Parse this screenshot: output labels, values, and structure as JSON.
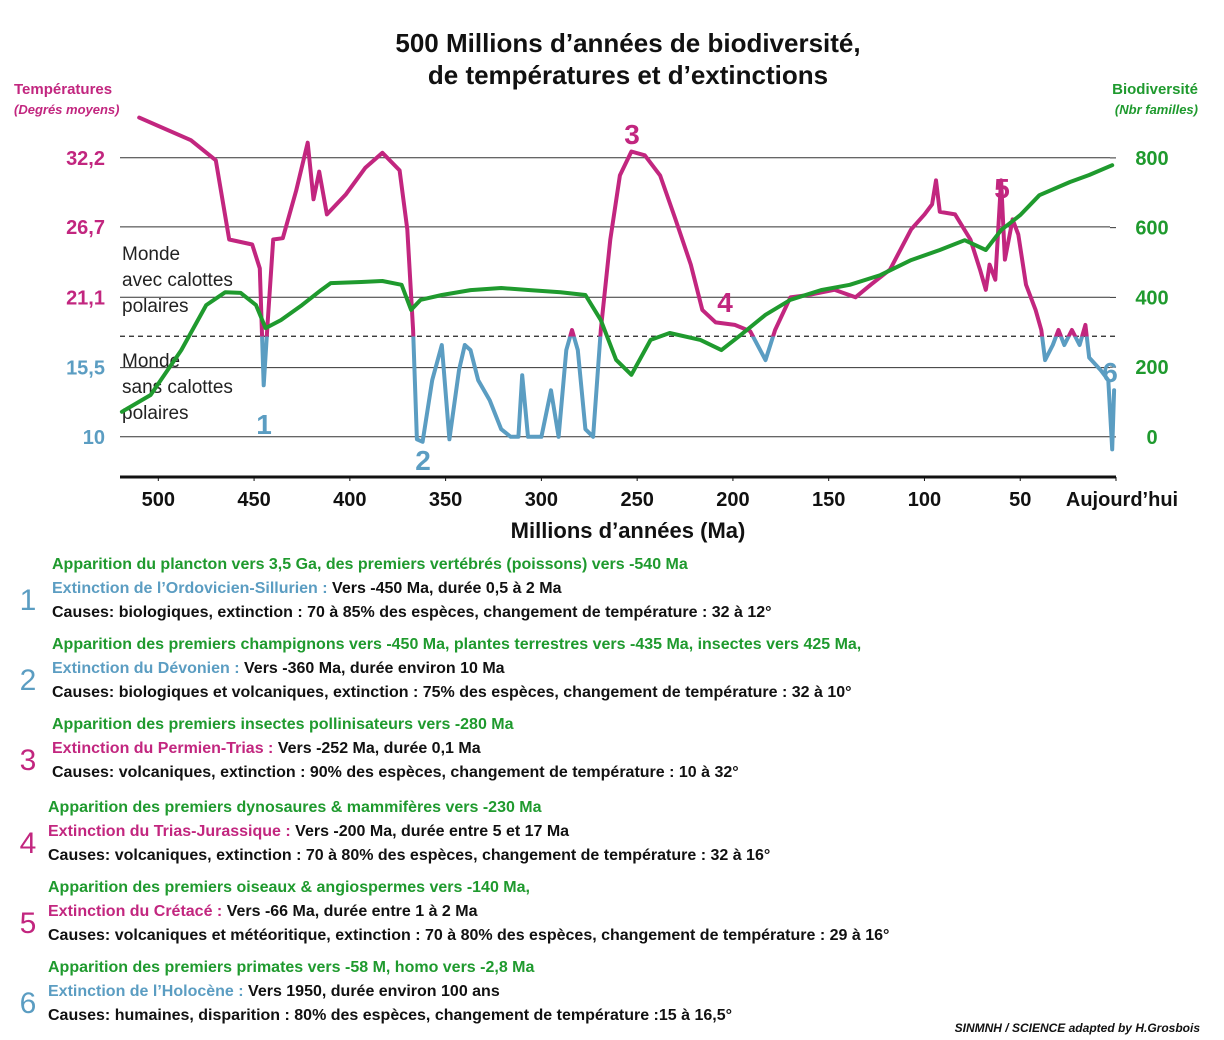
{
  "chart_data": {
    "type": "line",
    "title": [
      "500 Millions d’années de biodiversité,",
      "de températures et d’extinctions"
    ],
    "x_label": "Millions d’années (Ma)",
    "xlim": [
      520,
      0
    ],
    "xticks": [
      500,
      450,
      400,
      350,
      300,
      250,
      200,
      150,
      100,
      50,
      {
        "value": 0,
        "label": "Aujourd’hui"
      }
    ],
    "ylim": [
      6.8,
      36.8
    ],
    "yticks": [
      {
        "value": 32.2,
        "label": "32,2"
      },
      {
        "value": 26.7,
        "label": "26,7"
      },
      {
        "value": 21.1,
        "label": "21,1"
      },
      {
        "value": 15.5,
        "label": "15,5"
      },
      10
    ],
    "y2lim": [
      -115,
      966
    ],
    "y2ticks": [
      800,
      600,
      400,
      200,
      0
    ],
    "grid": true,
    "ice_cap_threshold": 18,
    "series": [
      {
        "name": "Températures",
        "unit": "(Degrés moyens)",
        "color": "#c2267f",
        "cold_color": "#5b9dc2",
        "x": [
          510,
          483,
          470,
          463,
          451,
          447,
          445,
          443,
          440,
          435,
          428,
          422,
          419,
          416,
          412,
          402,
          392,
          383,
          374,
          370,
          367,
          365,
          362,
          357,
          352,
          348,
          343,
          340,
          337,
          333,
          327,
          321,
          316,
          312,
          310,
          307,
          300,
          295,
          291,
          287,
          284,
          281,
          277,
          273,
          269,
          264,
          259,
          253,
          246,
          238,
          230,
          222,
          216,
          209,
          199,
          191,
          183,
          178,
          170,
          160,
          147,
          136,
          128,
          118,
          107,
          100,
          96,
          94,
          92,
          84,
          76,
          71,
          68,
          66,
          63,
          60,
          58,
          54,
          51,
          47,
          42,
          39,
          37,
          33,
          30,
          27,
          23,
          19,
          16,
          14,
          8,
          4,
          2,
          1
        ],
        "values": [
          35.4,
          33.6,
          32.0,
          25.7,
          25.3,
          23.4,
          14.1,
          18.9,
          25.7,
          25.8,
          29.6,
          33.4,
          28.9,
          31.1,
          27.7,
          29.3,
          31.4,
          32.6,
          31.2,
          26.5,
          18.5,
          9.8,
          9.6,
          14.5,
          17.3,
          9.8,
          15.3,
          17.3,
          16.9,
          14.5,
          12.9,
          10.6,
          10.0,
          10.0,
          14.9,
          10.0,
          10.0,
          13.7,
          10.0,
          16.9,
          18.5,
          16.9,
          10.6,
          10.0,
          18.5,
          25.7,
          30.8,
          32.7,
          32.4,
          30.8,
          27.3,
          23.7,
          20.1,
          19.1,
          18.9,
          18.4,
          16.1,
          18.5,
          21.1,
          21.3,
          21.7,
          21.1,
          22.1,
          23.3,
          26.5,
          27.7,
          28.5,
          30.4,
          27.9,
          27.7,
          25.7,
          23.3,
          21.7,
          23.7,
          22.5,
          30.4,
          24.1,
          27.3,
          26.1,
          22.1,
          20.1,
          18.5,
          16.1,
          17.3,
          18.5,
          17.3,
          18.5,
          17.3,
          18.9,
          16.3,
          15.3,
          14.5,
          9.0,
          13.7
        ]
      },
      {
        "name": "Biodiversité",
        "unit": "(Nbr familles)",
        "color": "#1f9a2e",
        "axis": "y2",
        "x": [
          519,
          504,
          488,
          475,
          465,
          457,
          449,
          444,
          436,
          425,
          415,
          410,
          394,
          383,
          373,
          368,
          363,
          352,
          337,
          321,
          306,
          290,
          277,
          269,
          261,
          253,
          243,
          233,
          217,
          206,
          196,
          183,
          170,
          154,
          139,
          123,
          107,
          92,
          79,
          68,
          60,
          50,
          40,
          24,
          14,
          2
        ],
        "values": [
          72,
          120,
          249,
          378,
          415,
          413,
          378,
          312,
          335,
          378,
          421,
          441,
          444,
          447,
          436,
          364,
          393,
          407,
          421,
          427,
          421,
          415,
          407,
          335,
          221,
          178,
          278,
          298,
          278,
          249,
          292,
          350,
          393,
          421,
          436,
          464,
          507,
          536,
          564,
          536,
          593,
          636,
          693,
          731,
          751,
          779
        ]
      }
    ],
    "annotations": [
      {
        "text": "1",
        "color": "#5b9dc2"
      },
      {
        "text": "2",
        "color": "#5b9dc2"
      },
      {
        "text": "3",
        "color": "#c2267f"
      },
      {
        "text": "4",
        "color": "#c2267f"
      },
      {
        "text": "5",
        "color": "#c2267f"
      },
      {
        "text": "6",
        "color": "#5b9dc2"
      }
    ],
    "zones": [
      [
        "Monde",
        "avec calottes",
        "polaires"
      ],
      [
        "Monde",
        "sans calottes",
        "polaires"
      ]
    ]
  },
  "events": [
    {
      "number": "1",
      "color": "#5b9dc2",
      "appearance": "Apparition du plancton vers 3,5 Ga, des premiers vertébrés (poissons) vers -540 Ma",
      "extinction": "Extinction de l’Ordovicien-Sillurien :",
      "details": " Vers -450 Ma, durée 0,5 à 2 Ma",
      "causes": "Causes: biologiques, extinction : 70 à 85% des espèces, changement de température : 32 à 12°"
    },
    {
      "number": "2",
      "color": "#5b9dc2",
      "appearance": "Apparition des premiers champignons vers -450 Ma, plantes terrestres vers -435 Ma, insectes vers 425 Ma,",
      "extinction": "Extinction du Dévonien :",
      "details": " Vers -360 Ma, durée environ 10 Ma",
      "causes": "Causes: biologiques et volcaniques, extinction : 75% des espèces, changement de température : 32 à 10°"
    },
    {
      "number": "3",
      "color": "#c2267f",
      "appearance": "Apparition des premiers insectes pollinisateurs vers -280 Ma",
      "extinction": "Extinction du Permien-Trias :",
      "details": " Vers -252 Ma, durée 0,1 Ma",
      "causes": "Causes: volcaniques, extinction : 90% des espèces, changement de température : 10 à 32°"
    },
    {
      "number": "4",
      "color": "#c2267f",
      "appearance": "Apparition des premiers dynosaures & mammifères vers -230 Ma",
      "extinction": "Extinction du Trias-Jurassique :",
      "details": " Vers -200 Ma, durée entre 5 et 17 Ma",
      "causes": "Causes: volcaniques, extinction : 70 à 80% des espèces, changement de température : 32 à 16°"
    },
    {
      "number": "5",
      "color": "#c2267f",
      "appearance": "Apparition des premiers oiseaux & angiospermes vers -140 Ma,",
      "extinction": "Extinction du Crétacé :",
      "details": " Vers -66 Ma, durée entre 1 à 2 Ma",
      "causes": "Causes: volcaniques et météoritique, extinction : 70 à 80% des espèces, changement de température : 29 à 16°"
    },
    {
      "number": "6",
      "color": "#5b9dc2",
      "appearance": "Apparition des premiers primates vers -58 M, homo vers -2,8 Ma",
      "extinction": "Extinction de l’Holocène :",
      "details": " Vers 1950, durée environ 100 ans",
      "causes": "Causes: humaines, disparition : 80% des espèces, changement de température :15 à 16,5°"
    }
  ],
  "credit": "SINMNH / SCIENCE adapted by H.Grosbois"
}
